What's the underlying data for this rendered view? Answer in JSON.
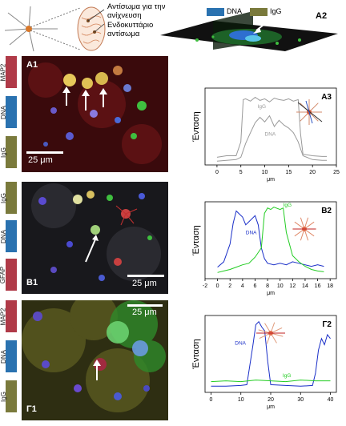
{
  "schematic": {
    "label_detection_antibody": "Αντίσωμα για την ανίχνευση",
    "label_intracellular_antibody": "Ενδοκυττάριο αντίσωμα"
  },
  "legend": {
    "dna": "DNA",
    "igg": "IgG"
  },
  "colors": {
    "dna": "#2a72b0",
    "igg": "#7a7a3c",
    "map2": "#b03a48",
    "gfap": "#b03a48",
    "blue_line": "#1a2fc8",
    "green_line": "#22cc22",
    "gray_line": "#9a9a9a"
  },
  "panels": {
    "A2": {
      "label": "A2"
    },
    "A1": {
      "label": "A1",
      "scale": "25 μm",
      "stains": [
        "MAP2",
        "DNA",
        "IgG"
      ]
    },
    "B1": {
      "label": "B1",
      "scale": "25 μm",
      "stains": [
        "IgG",
        "DNA",
        "GFAP"
      ]
    },
    "G1": {
      "label": "Γ1",
      "scale": "25 μm",
      "stains": [
        "MAP2",
        "DNA",
        "IgG"
      ]
    }
  },
  "chart_data": [
    {
      "type": "line",
      "title": "A3",
      "ylabel": "Ένταση",
      "xlabel": "μm",
      "xlim": [
        -2.5,
        25
      ],
      "xticks": [
        0,
        5,
        10,
        15,
        20,
        25
      ],
      "ylim": [
        0,
        100
      ],
      "series": [
        {
          "name": "IgG",
          "color": "gray_line",
          "x": [
            0,
            2,
            4,
            5,
            5.5,
            6,
            7,
            8,
            9,
            10,
            11,
            12,
            13,
            14,
            15,
            16,
            17,
            17.5,
            18,
            20,
            22,
            23
          ],
          "values": [
            10,
            12,
            12,
            30,
            85,
            86,
            83,
            88,
            84,
            86,
            82,
            87,
            85,
            84,
            86,
            83,
            85,
            40,
            14,
            12,
            11,
            11
          ]
        },
        {
          "name": "DNA",
          "color": "gray_line",
          "x": [
            0,
            2,
            4,
            5,
            6,
            7,
            8,
            9,
            10,
            11,
            12,
            13,
            14,
            15,
            16,
            17,
            18,
            20,
            22,
            23
          ],
          "values": [
            5,
            6,
            7,
            10,
            28,
            42,
            55,
            62,
            56,
            64,
            50,
            58,
            52,
            48,
            42,
            30,
            12,
            7,
            6,
            6
          ]
        }
      ]
    },
    {
      "type": "line",
      "title": "B2",
      "ylabel": "Ένταση",
      "xlabel": "μm",
      "xlim": [
        -2,
        19
      ],
      "xticks": [
        -2,
        0,
        2,
        4,
        6,
        8,
        10,
        12,
        14,
        16,
        18
      ],
      "ylim": [
        0,
        100
      ],
      "series": [
        {
          "name": "DNA",
          "color": "blue_line",
          "x": [
            0,
            1,
            2,
            2.5,
            3,
            4,
            4.5,
            5,
            6,
            6.5,
            7,
            7.5,
            8,
            9,
            10,
            11,
            12,
            13,
            14,
            15,
            16,
            17
          ],
          "values": [
            15,
            22,
            45,
            72,
            88,
            80,
            70,
            74,
            82,
            70,
            40,
            26,
            20,
            18,
            20,
            18,
            22,
            20,
            18,
            16,
            18,
            16
          ]
        },
        {
          "name": "IgG",
          "color": "green_line",
          "x": [
            0,
            1,
            2,
            3,
            4,
            5,
            6,
            7,
            7.5,
            8,
            8.5,
            9,
            10,
            10.5,
            11,
            12,
            13,
            14,
            15,
            16,
            17
          ],
          "values": [
            8,
            10,
            12,
            15,
            18,
            20,
            28,
            40,
            85,
            92,
            90,
            93,
            90,
            92,
            60,
            30,
            22,
            16,
            12,
            10,
            9
          ]
        }
      ]
    },
    {
      "type": "line",
      "title": "Γ2",
      "ylabel": "Ένταση",
      "xlabel": "μm",
      "xlim": [
        -2,
        42
      ],
      "xticks": [
        0,
        10,
        20,
        30,
        40
      ],
      "ylim": [
        0,
        100
      ],
      "series": [
        {
          "name": "DNA",
          "color": "blue_line",
          "x": [
            0,
            5,
            10,
            12,
            14,
            15,
            16,
            17,
            18,
            19,
            20,
            25,
            30,
            34,
            35,
            36,
            37,
            38,
            39,
            40
          ],
          "values": [
            8,
            8,
            9,
            10,
            60,
            88,
            92,
            85,
            80,
            40,
            10,
            9,
            8,
            9,
            25,
            55,
            70,
            62,
            75,
            70
          ]
        },
        {
          "name": "IgG",
          "color": "green_line",
          "x": [
            0,
            5,
            10,
            15,
            20,
            25,
            30,
            35,
            40
          ],
          "values": [
            14,
            15,
            14,
            16,
            15,
            14,
            16,
            15,
            15
          ]
        }
      ]
    }
  ]
}
